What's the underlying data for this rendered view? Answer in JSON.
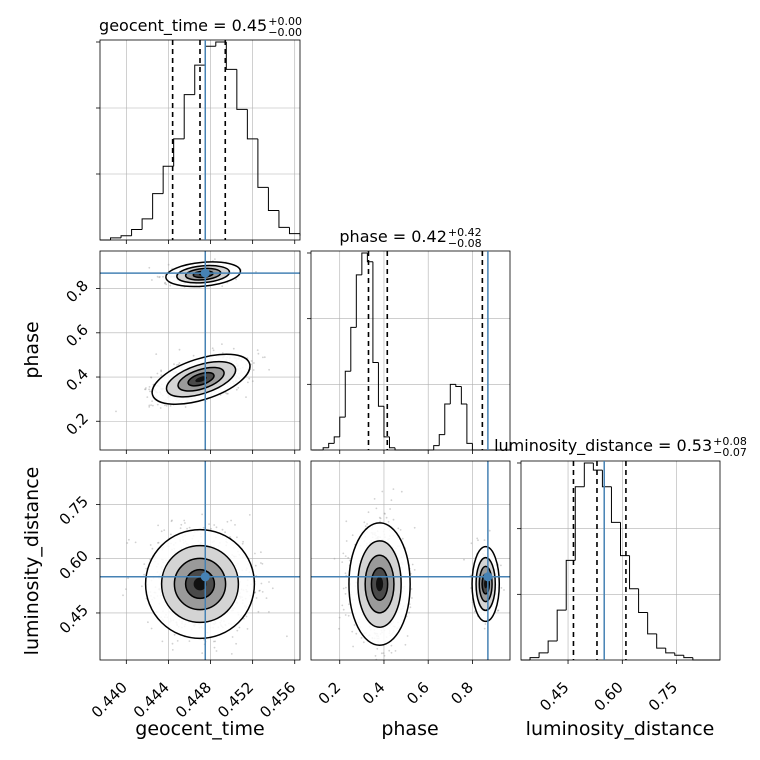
{
  "colors": {
    "truth": "#4682b4",
    "contour": "#000000",
    "quantile": "#000000",
    "grid": "#b0b0b0"
  },
  "titles": {
    "geocent_time": {
      "text": "geocent_time = 0.45",
      "sup": "+0.00",
      "sub": "−0.00"
    },
    "phase": {
      "text": "phase = 0.42",
      "sup": "+0.42",
      "sub": "−0.08"
    },
    "luminosity_distance": {
      "text": "luminosity_distance = 0.53",
      "sup": "+0.08",
      "sub": "−0.07"
    }
  },
  "chart_data": {
    "type": "corner",
    "parameters": [
      "geocent_time",
      "phase",
      "luminosity_distance"
    ],
    "axis_labels": {
      "x": [
        "geocent_time",
        "phase",
        "luminosity_distance"
      ],
      "y": [
        "phase",
        "luminosity_distance"
      ]
    },
    "ranges": {
      "geocent_time": [
        0.4375,
        0.4565
      ],
      "phase": [
        0.07,
        0.97
      ],
      "luminosity_distance": [
        0.32,
        0.87
      ]
    },
    "ticks": {
      "geocent_time": [
        "0.440",
        "0.444",
        "0.448",
        "0.452",
        "0.456"
      ],
      "phase": [
        "0.2",
        "0.4",
        "0.6",
        "0.8"
      ],
      "phase_y": [
        "0.2",
        "0.4",
        "0.6",
        "0.8"
      ],
      "luminosity_distance": [
        "0.45",
        "0.60",
        "0.75"
      ]
    },
    "truths": {
      "geocent_time": 0.4475,
      "phase": 0.87,
      "luminosity_distance": 0.55
    },
    "quantiles": {
      "geocent_time": [
        0.4444,
        0.447,
        0.4494
      ],
      "phase": [
        0.33,
        0.415,
        0.845
      ],
      "luminosity_distance": [
        0.465,
        0.53,
        0.61
      ]
    },
    "histograms": {
      "geocent_time": {
        "start": 0.4375,
        "step": 0.001,
        "counts": [
          0.0,
          0.01,
          0.02,
          0.05,
          0.1,
          0.22,
          0.35,
          0.48,
          0.69,
          0.83,
          0.92,
          0.94,
          0.81,
          0.62,
          0.48,
          0.25,
          0.14,
          0.06,
          0.03,
          0.02,
          0.005
        ]
      },
      "phase": {
        "start": 0.075,
        "step": 0.025,
        "counts": [
          0.0,
          0.0,
          0.01,
          0.03,
          0.06,
          0.15,
          0.36,
          0.56,
          0.8,
          0.9,
          0.86,
          0.4,
          0.2,
          0.06,
          0.01,
          0.0,
          0.0,
          0.0,
          0.0,
          0.0,
          0.0,
          0.0,
          0.02,
          0.07,
          0.21,
          0.3,
          0.29,
          0.21,
          0.03,
          0.0,
          0.0,
          0.0,
          0.0,
          0.0,
          0.0,
          0.0
        ]
      },
      "luminosity_distance": {
        "start": 0.32,
        "step": 0.025,
        "counts": [
          0.0,
          0.01,
          0.03,
          0.08,
          0.21,
          0.42,
          0.73,
          0.83,
          0.8,
          0.73,
          0.58,
          0.44,
          0.3,
          0.2,
          0.11,
          0.05,
          0.03,
          0.02,
          0.01,
          0.0,
          0.0,
          0.0
        ]
      }
    },
    "grid": true
  }
}
